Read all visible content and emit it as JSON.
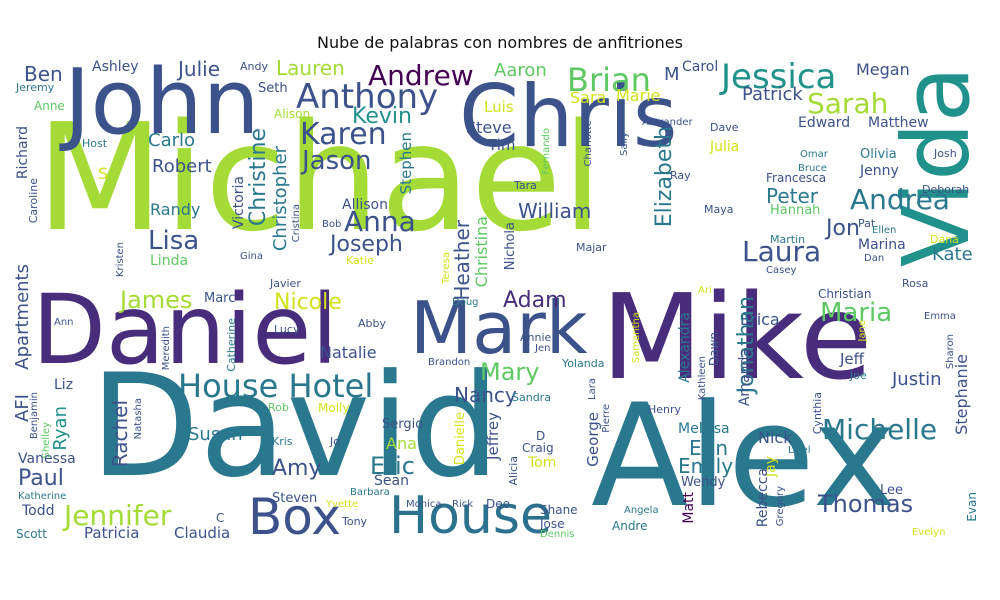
{
  "title": "Nube de palabras con nombres de anfitriones",
  "words": [
    {
      "text": "Michael",
      "color": "#a5db36"
    },
    {
      "text": "David",
      "color": "#2a788e"
    },
    {
      "text": "Alex",
      "color": "#2a788e"
    },
    {
      "text": "Mike",
      "color": "#472d7b"
    },
    {
      "text": "Daniel",
      "color": "#472d7b"
    },
    {
      "text": "John",
      "color": "#3b528b"
    },
    {
      "text": "Chris",
      "color": "#3b528b"
    },
    {
      "text": "Vida",
      "color": "#21918c"
    },
    {
      "text": "Mark",
      "color": "#3b528b"
    },
    {
      "text": "House",
      "color": "#2c728e"
    },
    {
      "text": "Box",
      "color": "#3b528b"
    },
    {
      "text": "House Hotel",
      "color": "#2a788e"
    },
    {
      "text": "Andrew",
      "color": "#440154"
    },
    {
      "text": "Jessica",
      "color": "#21918c"
    },
    {
      "text": "Brian",
      "color": "#5ec962"
    },
    {
      "text": "Anthony",
      "color": "#3b528b"
    },
    {
      "text": "Sarah",
      "color": "#a5db36"
    },
    {
      "text": "Karen",
      "color": "#3b528b"
    },
    {
      "text": "Jason",
      "color": "#3b528b"
    },
    {
      "text": "Kevin",
      "color": "#21918c"
    },
    {
      "text": "Jennifer",
      "color": "#a5db36"
    },
    {
      "text": "Michelle",
      "color": "#2a788e"
    },
    {
      "text": "Nicole",
      "color": "#d2e21b"
    },
    {
      "text": "Andrea",
      "color": "#2a788e"
    },
    {
      "text": "Laura",
      "color": "#3b528b"
    },
    {
      "text": "Maria",
      "color": "#5ec962"
    },
    {
      "text": "William",
      "color": "#3b528b"
    },
    {
      "text": "Anna",
      "color": "#3b528b"
    },
    {
      "text": "Joseph",
      "color": "#3b528b"
    },
    {
      "text": "Lisa",
      "color": "#3b528b"
    },
    {
      "text": "James",
      "color": "#a5db36"
    },
    {
      "text": "Adam",
      "color": "#472d7b"
    },
    {
      "text": "Eric",
      "color": "#2a788e"
    },
    {
      "text": "Thomas",
      "color": "#3b528b"
    },
    {
      "text": "Emily",
      "color": "#2a788e"
    },
    {
      "text": "Erin",
      "color": "#2a788e"
    },
    {
      "text": "Paul",
      "color": "#3b528b"
    },
    {
      "text": "Amy",
      "color": "#3b528b"
    },
    {
      "text": "Mary",
      "color": "#5ec962"
    },
    {
      "text": "Nancy",
      "color": "#3b528b"
    },
    {
      "text": "Natalie",
      "color": "#3b528b"
    },
    {
      "text": "Susan",
      "color": "#2a788e"
    },
    {
      "text": "Justin",
      "color": "#3b528b"
    },
    {
      "text": "Jon",
      "color": "#3b528b"
    },
    {
      "text": "Peter",
      "color": "#2a788e"
    },
    {
      "text": "Kate",
      "color": "#2a788e"
    },
    {
      "text": "Ben",
      "color": "#3b528b"
    },
    {
      "text": "Julie",
      "color": "#3b528b"
    },
    {
      "text": "Lauren",
      "color": "#a5db36"
    },
    {
      "text": "Aaron",
      "color": "#5ec962"
    },
    {
      "text": "Ashley",
      "color": "#3b528b"
    },
    {
      "text": "Andy",
      "color": "#3b528b"
    },
    {
      "text": "Carol",
      "color": "#3b528b"
    },
    {
      "text": "Megan",
      "color": "#3b528b"
    },
    {
      "text": "M",
      "color": "#3b528b"
    },
    {
      "text": "Patrick",
      "color": "#3b528b"
    },
    {
      "text": "Sara",
      "color": "#d2e21b"
    },
    {
      "text": "Marie",
      "color": "#d2e21b"
    },
    {
      "text": "Seth",
      "color": "#3b528b"
    },
    {
      "text": "Jeremy",
      "color": "#2a788e"
    },
    {
      "text": "Anne",
      "color": "#5ec962"
    },
    {
      "text": "Alison",
      "color": "#a5db36"
    },
    {
      "text": "Luis",
      "color": "#d2e21b"
    },
    {
      "text": "Steve",
      "color": "#3b528b"
    },
    {
      "text": "Tim",
      "color": "#3b528b"
    },
    {
      "text": "Stephen",
      "color": "#2a788e"
    },
    {
      "text": "Carlo",
      "color": "#2a788e"
    },
    {
      "text": "Host",
      "color": "#2a788e"
    },
    {
      "text": "Robert",
      "color": "#3b528b"
    },
    {
      "text": "Edward",
      "color": "#3b528b"
    },
    {
      "text": "Matthew",
      "color": "#3b528b"
    },
    {
      "text": "Julia",
      "color": "#d2e21b"
    },
    {
      "text": "Dave",
      "color": "#3b528b"
    },
    {
      "text": "Alexander",
      "color": "#3b528b"
    },
    {
      "text": "Olivia",
      "color": "#2a788e"
    },
    {
      "text": "Josh",
      "color": "#3b528b"
    },
    {
      "text": "Omar",
      "color": "#2a788e"
    },
    {
      "text": "Bruce",
      "color": "#2a788e"
    },
    {
      "text": "Francesca",
      "color": "#3b528b"
    },
    {
      "text": "Jenny",
      "color": "#3b528b"
    },
    {
      "text": "Deborah",
      "color": "#3b528b"
    },
    {
      "text": "Ray",
      "color": "#3b528b"
    },
    {
      "text": "Tara",
      "color": "#3b528b"
    },
    {
      "text": "Allison",
      "color": "#3b528b"
    },
    {
      "text": "Randy",
      "color": "#2a788e"
    },
    {
      "text": "Maya",
      "color": "#3b528b"
    },
    {
      "text": "Hannah",
      "color": "#5ec962"
    },
    {
      "text": "Pat",
      "color": "#3b528b"
    },
    {
      "text": "Ellen",
      "color": "#2a788e"
    },
    {
      "text": "Martin",
      "color": "#2a788e"
    },
    {
      "text": "Marina",
      "color": "#3b528b"
    },
    {
      "text": "Dana",
      "color": "#d2e21b"
    },
    {
      "text": "Dan",
      "color": "#3b528b"
    },
    {
      "text": "Linda",
      "color": "#5ec962"
    },
    {
      "text": "Gina",
      "color": "#3b528b"
    },
    {
      "text": "Bob",
      "color": "#3b528b"
    },
    {
      "text": "Katie",
      "color": "#d2e21b"
    },
    {
      "text": "Majar",
      "color": "#3b528b"
    },
    {
      "text": "Casey",
      "color": "#3b528b"
    },
    {
      "text": "Rosa",
      "color": "#3b528b"
    },
    {
      "text": "Christian",
      "color": "#3b528b"
    },
    {
      "text": "Javier",
      "color": "#3b528b"
    },
    {
      "text": "Marc",
      "color": "#3b528b"
    },
    {
      "text": "Doug",
      "color": "#2a788e"
    },
    {
      "text": "Ari",
      "color": "#d2e21b"
    },
    {
      "text": "Ann",
      "color": "#3b528b"
    },
    {
      "text": "Abby",
      "color": "#3b528b"
    },
    {
      "text": "Lucy",
      "color": "#3b528b"
    },
    {
      "text": "Annie",
      "color": "#3b528b"
    },
    {
      "text": "Jen",
      "color": "#3b528b"
    },
    {
      "text": "Erica",
      "color": "#3b528b"
    },
    {
      "text": "Emma",
      "color": "#3b528b"
    },
    {
      "text": "Brandon",
      "color": "#3b528b"
    },
    {
      "text": "Yolanda",
      "color": "#2a788e"
    },
    {
      "text": "Jeff",
      "color": "#3b528b"
    },
    {
      "text": "Joe",
      "color": "#2a788e"
    },
    {
      "text": "Liz",
      "color": "#3b528b"
    },
    {
      "text": "Sandra",
      "color": "#2a788e"
    },
    {
      "text": "Rob",
      "color": "#5ec962"
    },
    {
      "text": "Molly",
      "color": "#d2e21b"
    },
    {
      "text": "Sergio",
      "color": "#3b528b"
    },
    {
      "text": "Henry",
      "color": "#3b528b"
    },
    {
      "text": "Melissa",
      "color": "#2a788e"
    },
    {
      "text": "Nick",
      "color": "#3b528b"
    },
    {
      "text": "Ana",
      "color": "#a5db36"
    },
    {
      "text": "Kris",
      "color": "#2a788e"
    },
    {
      "text": "Jo",
      "color": "#3b528b"
    },
    {
      "text": "D",
      "color": "#3b528b"
    },
    {
      "text": "Craig",
      "color": "#3b528b"
    },
    {
      "text": "Tom",
      "color": "#d2e21b"
    },
    {
      "text": "Lisel",
      "color": "#2a788e"
    },
    {
      "text": "Sean",
      "color": "#3b528b"
    },
    {
      "text": "Vanessa",
      "color": "#3b528b"
    },
    {
      "text": "Wendy",
      "color": "#3b528b"
    },
    {
      "text": "Steven",
      "color": "#3b528b"
    },
    {
      "text": "Barbara",
      "color": "#2a788e"
    },
    {
      "text": "Yvette",
      "color": "#d2e21b"
    },
    {
      "text": "Lee",
      "color": "#3b528b"
    },
    {
      "text": "Katherine",
      "color": "#2a788e"
    },
    {
      "text": "Monica",
      "color": "#3b528b"
    },
    {
      "text": "Rick",
      "color": "#3b528b"
    },
    {
      "text": "Dee",
      "color": "#3b528b"
    },
    {
      "text": "Todd",
      "color": "#3b528b"
    },
    {
      "text": "Shane",
      "color": "#3b528b"
    },
    {
      "text": "Angela",
      "color": "#2a788e"
    },
    {
      "text": "C",
      "color": "#3b528b"
    },
    {
      "text": "Tony",
      "color": "#3b528b"
    },
    {
      "text": "Jose",
      "color": "#3b528b"
    },
    {
      "text": "Andre",
      "color": "#2a788e"
    },
    {
      "text": "Dennis",
      "color": "#5ec962"
    },
    {
      "text": "Scott",
      "color": "#2a788e"
    },
    {
      "text": "Patricia",
      "color": "#3b528b"
    },
    {
      "text": "Claudia",
      "color": "#3b528b"
    },
    {
      "text": "Evelyn",
      "color": "#d2e21b"
    },
    {
      "text": "S",
      "color": "#d2e21b"
    },
    {
      "text": "Richard",
      "color": "#3b528b"
    },
    {
      "text": "Caroline",
      "color": "#3b528b"
    },
    {
      "text": "Kristen",
      "color": "#3b528b"
    },
    {
      "text": "Apartments",
      "color": "#3b528b"
    },
    {
      "text": "AFI",
      "color": "#3b528b"
    },
    {
      "text": "Benjamin",
      "color": "#3b528b"
    },
    {
      "text": "Shelley",
      "color": "#5ec962"
    },
    {
      "text": "Ryan",
      "color": "#21918c"
    },
    {
      "text": "Rachel",
      "color": "#3b528b"
    },
    {
      "text": "Natasha",
      "color": "#3b528b"
    },
    {
      "text": "Meredith",
      "color": "#3b528b"
    },
    {
      "text": "Catherine",
      "color": "#2a788e"
    },
    {
      "text": "Victoria",
      "color": "#3b528b"
    },
    {
      "text": "Christine",
      "color": "#2a788e"
    },
    {
      "text": "Christopher",
      "color": "#2a788e"
    },
    {
      "text": "Cristina",
      "color": "#3b528b"
    },
    {
      "text": "Heather",
      "color": "#3b528b"
    },
    {
      "text": "Christina",
      "color": "#5ec962"
    },
    {
      "text": "Teresa",
      "color": "#d2e21b"
    },
    {
      "text": "Nichola",
      "color": "#3b528b"
    },
    {
      "text": "Elizabeth",
      "color": "#2a788e"
    },
    {
      "text": "Jonathan",
      "color": "#2a788e"
    },
    {
      "text": "Fernando",
      "color": "#5ec962"
    },
    {
      "text": "Charlotte",
      "color": "#3b528b"
    },
    {
      "text": "Sally",
      "color": "#3b528b"
    },
    {
      "text": "Samantha",
      "color": "#d2e21b"
    },
    {
      "text": "Alexandra",
      "color": "#2a788e"
    },
    {
      "text": "Kathleen",
      "color": "#3b528b"
    },
    {
      "text": "Dawn",
      "color": "#3b528b"
    },
    {
      "text": "Amanda",
      "color": "#3b528b"
    },
    {
      "text": "Jay",
      "color": "#d2e21b"
    },
    {
      "text": "Rebecca",
      "color": "#3b528b"
    },
    {
      "text": "Gregory",
      "color": "#3b528b"
    },
    {
      "text": "Cynthia",
      "color": "#3b528b"
    },
    {
      "text": "Stephanie",
      "color": "#3b528b"
    },
    {
      "text": "Sharon",
      "color": "#3b528b"
    },
    {
      "text": "Jane",
      "color": "#d2e21b"
    },
    {
      "text": "Evan",
      "color": "#2a788e"
    },
    {
      "text": "Lara",
      "color": "#3b528b"
    },
    {
      "text": "Pierre",
      "color": "#3b528b"
    },
    {
      "text": "George",
      "color": "#3b528b"
    },
    {
      "text": "Danielle",
      "color": "#d2e21b"
    },
    {
      "text": "Jeffrey",
      "color": "#3b528b"
    },
    {
      "text": "Alicia",
      "color": "#3b528b"
    },
    {
      "text": "Matt",
      "color": "#440154"
    }
  ]
}
